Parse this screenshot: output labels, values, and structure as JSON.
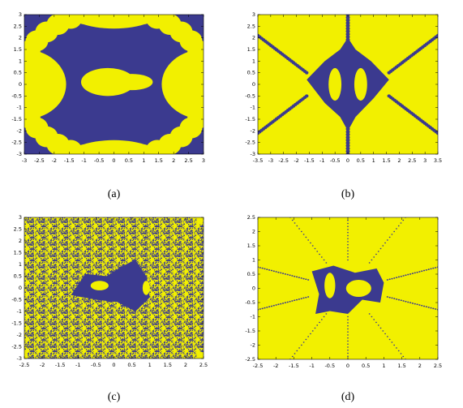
{
  "panels": [
    {
      "caption": "(a)",
      "xlim": [
        -3,
        3
      ],
      "ylim": [
        -3,
        3
      ],
      "xticks": [
        -3,
        -2.5,
        -2,
        -1.5,
        -1,
        -0.5,
        0,
        0.5,
        1,
        1.5,
        2,
        2.5,
        3
      ],
      "yticks": [
        -3,
        -2.5,
        -2,
        -1.5,
        -1,
        -0.5,
        0,
        0.5,
        1,
        1.5,
        2,
        2.5,
        3
      ]
    },
    {
      "caption": "(b)",
      "xlim": [
        -3.5,
        3.5
      ],
      "ylim": [
        -3,
        3
      ],
      "xticks": [
        -3.5,
        -3,
        -2.5,
        -2,
        -1.5,
        -1,
        -0.5,
        0,
        0.5,
        1,
        1.5,
        2,
        2.5,
        3,
        3.5
      ],
      "yticks": [
        -3,
        -2.5,
        -2,
        -1.5,
        -1,
        -0.5,
        0,
        0.5,
        1,
        1.5,
        2,
        2.5,
        3
      ]
    },
    {
      "caption": "(c)",
      "xlim": [
        -2.5,
        2.5
      ],
      "ylim": [
        -3,
        3
      ],
      "xticks": [
        -2.5,
        -2,
        -1.5,
        -1,
        -0.5,
        0,
        0.5,
        1,
        1.5,
        2,
        2.5
      ],
      "yticks": [
        -3,
        -2.5,
        -2,
        -1.5,
        -1,
        -0.5,
        0,
        0.5,
        1,
        1.5,
        2,
        2.5,
        3
      ]
    },
    {
      "caption": "(d)",
      "xlim": [
        -2.5,
        2.5
      ],
      "ylim": [
        -2.5,
        2.5
      ],
      "xticks": [
        -2.5,
        -2,
        -1.5,
        -1,
        -0.5,
        0,
        0.5,
        1,
        1.5,
        2,
        2.5
      ],
      "yticks": [
        -2.5,
        -2,
        -1.5,
        -1,
        -0.5,
        0,
        0.5,
        1,
        1.5,
        2,
        2.5
      ]
    }
  ]
}
